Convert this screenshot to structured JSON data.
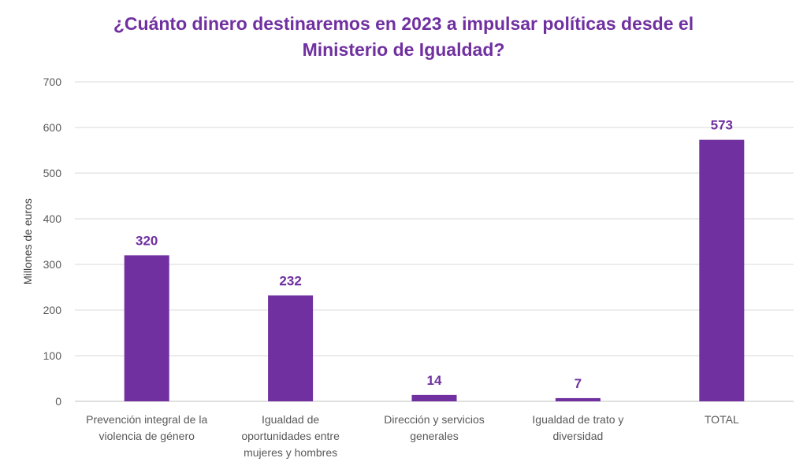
{
  "chart_data": {
    "type": "bar",
    "title": "¿Cuánto dinero destinaremos en 2023 a impulsar políticas desde el Ministerio de Igualdad?",
    "title_lines": [
      "¿Cuánto dinero destinaremos en 2023 a impulsar políticas desde el",
      "Ministerio de Igualdad?"
    ],
    "xlabel": "",
    "ylabel": "Millones de euros",
    "ylim": [
      0,
      700
    ],
    "yticks": [
      0,
      100,
      200,
      300,
      400,
      500,
      600,
      700
    ],
    "grid": true,
    "legend": "none",
    "categories": [
      [
        "Prevención integral de la",
        "violencia de género"
      ],
      [
        "Igualdad de",
        "oportunidades entre",
        "mujeres y hombres"
      ],
      [
        "Dirección y servicios",
        "generales"
      ],
      [
        "Igualdad de trato y",
        "diversidad"
      ],
      [
        "TOTAL"
      ]
    ],
    "values": [
      320,
      232,
      14,
      7,
      573
    ],
    "data_labels": [
      "320",
      "232",
      "14",
      "7",
      "573"
    ],
    "colors": {
      "bar": "#7030A0",
      "title": "#7030A0",
      "data_label": "#7030A0",
      "grid": "#D9D9D9",
      "axis_text": "#595959"
    }
  }
}
